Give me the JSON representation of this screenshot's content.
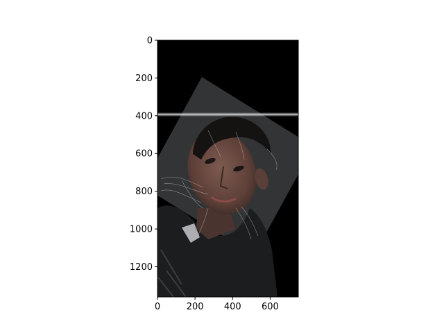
{
  "image_extent": {
    "x_range": [
      0,
      750
    ],
    "y_range": [
      0,
      1360
    ],
    "y_inverted": true
  },
  "axes": {
    "x_ticks": [
      {
        "value": 0,
        "label": "0"
      },
      {
        "value": 200,
        "label": "200"
      },
      {
        "value": 400,
        "label": "400"
      },
      {
        "value": 600,
        "label": "600"
      }
    ],
    "y_ticks": [
      {
        "value": 0,
        "label": "0"
      },
      {
        "value": 200,
        "label": "200"
      },
      {
        "value": 400,
        "label": "400"
      },
      {
        "value": 600,
        "label": "600"
      },
      {
        "value": 800,
        "label": "800"
      },
      {
        "value": 1000,
        "label": "1000"
      },
      {
        "value": 1200,
        "label": "1200"
      }
    ]
  },
  "colors": {
    "background": "#000000",
    "overlay_panel": "#3b3d40",
    "skin": "#6e4e46",
    "hair": "#151312",
    "jacket": "#1c1d1f",
    "collar": "#c8c8cc",
    "scan_line": "#cfcfcf"
  }
}
